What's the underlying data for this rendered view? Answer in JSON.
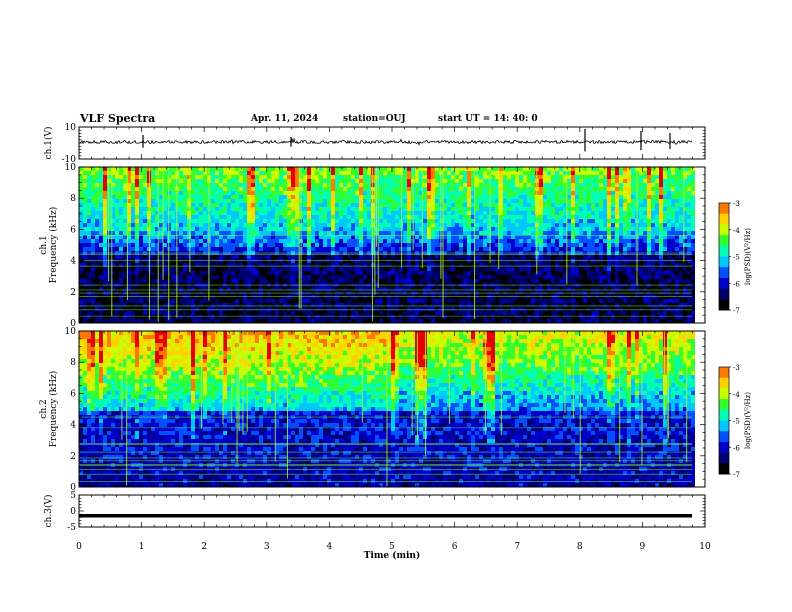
{
  "header": {
    "title": "VLF Spectra",
    "date": "Apr. 11, 2024",
    "station": "station=OUJ",
    "start_ut": "start  UT =   14: 40: 0"
  },
  "chart_data": [
    {
      "type": "line",
      "panel": "ch1-waveform",
      "ylabel": "ch.1(V)",
      "ylim": [
        -10,
        10
      ],
      "yticks": [
        "10",
        "-10"
      ],
      "series": [
        {
          "values": [
            -0.5,
            -0.3,
            1.6,
            -0.4,
            -0.2,
            -0.6,
            0.1
          ]
        }
      ]
    },
    {
      "type": "heatmap",
      "panel": "ch1-spectrogram",
      "ylabel": "ch.1\nFrequency (kHz)",
      "ylim": [
        0,
        10
      ],
      "yticks": [
        "0",
        "2",
        "4",
        "6",
        "8",
        "10"
      ],
      "colorbar": {
        "label": "log(PSD)(V²/Hz)",
        "range": [
          -7,
          -3
        ],
        "ticks": [
          "-3",
          "-4",
          "-5",
          "-6",
          "-7"
        ]
      }
    },
    {
      "type": "heatmap",
      "panel": "ch2-spectrogram",
      "ylabel": "ch.2\nFrequency (kHz)",
      "ylim": [
        0,
        10
      ],
      "yticks": [
        "0",
        "2",
        "4",
        "6",
        "8",
        "10"
      ],
      "colorbar": {
        "label": "log(PSD)(V²/Hz)",
        "range": [
          -7,
          -3
        ],
        "ticks": [
          "-3",
          "-4",
          "-5",
          "-6",
          "-7"
        ]
      }
    },
    {
      "type": "line",
      "panel": "ch3-waveform",
      "ylabel": "ch.3(V)",
      "ylim": [
        -5,
        5
      ],
      "yticks": [
        "5",
        "0",
        "-5"
      ],
      "series": [
        {
          "values": [
            -1.5,
            -1.5
          ]
        }
      ]
    }
  ],
  "x_axis": {
    "xlabel": "Time (min)",
    "xlim": [
      0,
      10
    ],
    "ticks": [
      "0",
      "1",
      "2",
      "3",
      "4",
      "5",
      "6",
      "7",
      "8",
      "9",
      "10"
    ]
  },
  "colors": {
    "colormap": [
      "#000000",
      "#00006e",
      "#0000c8",
      "#0050ff",
      "#00c8ff",
      "#00ffb4",
      "#32ff32",
      "#c8ff00",
      "#ffd200",
      "#ff7800",
      "#e60000",
      "#ffffff"
    ]
  }
}
